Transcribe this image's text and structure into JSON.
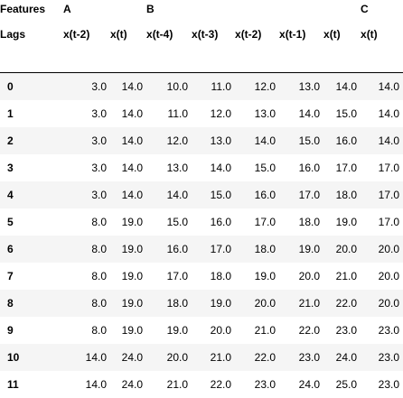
{
  "table": {
    "index_header_top": "Features",
    "index_header_bottom": "Lags",
    "groups": [
      {
        "label": "A",
        "span": 2
      },
      {
        "label": "B",
        "span": 5
      },
      {
        "label": "C",
        "span": 1
      }
    ],
    "columns": [
      "x(t-2)",
      "x(t)",
      "x(t-4)",
      "x(t-3)",
      "x(t-2)",
      "x(t-1)",
      "x(t)",
      "x(t)"
    ],
    "rows": [
      {
        "index": "0",
        "values": [
          "3.0",
          "14.0",
          "10.0",
          "11.0",
          "12.0",
          "13.0",
          "14.0",
          "14.0"
        ]
      },
      {
        "index": "1",
        "values": [
          "3.0",
          "14.0",
          "11.0",
          "12.0",
          "13.0",
          "14.0",
          "15.0",
          "14.0"
        ]
      },
      {
        "index": "2",
        "values": [
          "3.0",
          "14.0",
          "12.0",
          "13.0",
          "14.0",
          "15.0",
          "16.0",
          "14.0"
        ]
      },
      {
        "index": "3",
        "values": [
          "3.0",
          "14.0",
          "13.0",
          "14.0",
          "15.0",
          "16.0",
          "17.0",
          "17.0"
        ]
      },
      {
        "index": "4",
        "values": [
          "3.0",
          "14.0",
          "14.0",
          "15.0",
          "16.0",
          "17.0",
          "18.0",
          "17.0"
        ]
      },
      {
        "index": "5",
        "values": [
          "8.0",
          "19.0",
          "15.0",
          "16.0",
          "17.0",
          "18.0",
          "19.0",
          "17.0"
        ]
      },
      {
        "index": "6",
        "values": [
          "8.0",
          "19.0",
          "16.0",
          "17.0",
          "18.0",
          "19.0",
          "20.0",
          "20.0"
        ]
      },
      {
        "index": "7",
        "values": [
          "8.0",
          "19.0",
          "17.0",
          "18.0",
          "19.0",
          "20.0",
          "21.0",
          "20.0"
        ]
      },
      {
        "index": "8",
        "values": [
          "8.0",
          "19.0",
          "18.0",
          "19.0",
          "20.0",
          "21.0",
          "22.0",
          "20.0"
        ]
      },
      {
        "index": "9",
        "values": [
          "8.0",
          "19.0",
          "19.0",
          "20.0",
          "21.0",
          "22.0",
          "23.0",
          "23.0"
        ]
      },
      {
        "index": "10",
        "values": [
          "14.0",
          "24.0",
          "20.0",
          "21.0",
          "22.0",
          "23.0",
          "24.0",
          "23.0"
        ]
      },
      {
        "index": "11",
        "values": [
          "14.0",
          "24.0",
          "21.0",
          "22.0",
          "23.0",
          "24.0",
          "25.0",
          "23.0"
        ]
      }
    ]
  }
}
